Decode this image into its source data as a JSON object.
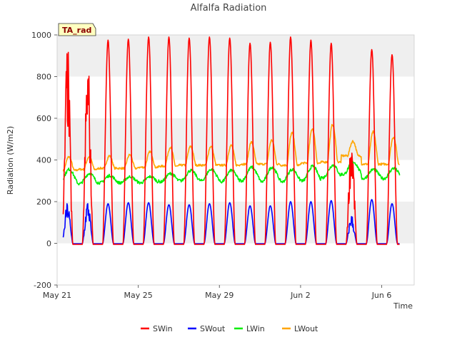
{
  "chart_data": {
    "type": "line",
    "title": "Alfalfa Radiation",
    "xlabel": "Time",
    "ylabel": "Radiation (W/m2)",
    "site_label": "TA_rad",
    "ylim": [
      -200,
      1000
    ],
    "yticks": [
      -200,
      0,
      200,
      400,
      600,
      800,
      1000
    ],
    "xlim_days": [
      0,
      17.6
    ],
    "xticks": [
      {
        "label": "May 21",
        "day": 0
      },
      {
        "label": "May 25",
        "day": 4
      },
      {
        "label": "May 29",
        "day": 8
      },
      {
        "label": "Jun 2",
        "day": 12
      },
      {
        "label": "Jun 6",
        "day": 16
      }
    ],
    "grid": "horizontal bands",
    "legend_position": "bottom",
    "data_start_day": 0.3,
    "data_end_day": 16.9,
    "samples_per_day": 48,
    "series": [
      {
        "name": "SWin",
        "color": "#ff0000",
        "daily_peak": [
          970,
          925,
          975,
          980,
          990,
          990,
          985,
          990,
          985,
          960,
          965,
          990,
          975,
          960,
          540,
          930,
          905
        ]
      },
      {
        "name": "SWout",
        "color": "#0000ff",
        "daily_peak": [
          200,
          210,
          190,
          195,
          195,
          185,
          185,
          190,
          195,
          180,
          180,
          200,
          200,
          205,
          140,
          210,
          190
        ]
      },
      {
        "name": "LWin",
        "color": "#00ee00",
        "daily_min": [
          285,
          285,
          290,
          290,
          290,
          295,
          300,
          300,
          295,
          300,
          295,
          295,
          300,
          315,
          330,
          310,
          310
        ],
        "daily_max": [
          355,
          335,
          325,
          320,
          320,
          335,
          350,
          355,
          350,
          365,
          365,
          355,
          370,
          375,
          390,
          355,
          360
        ]
      },
      {
        "name": "LWout",
        "color": "#ffa500",
        "daily_min": [
          350,
          355,
          360,
          360,
          365,
          370,
          375,
          375,
          375,
          380,
          380,
          375,
          385,
          390,
          420,
          380,
          380
        ],
        "daily_max": [
          415,
          415,
          420,
          425,
          440,
          460,
          465,
          465,
          470,
          485,
          495,
          530,
          550,
          570,
          490,
          535,
          510
        ]
      }
    ]
  }
}
